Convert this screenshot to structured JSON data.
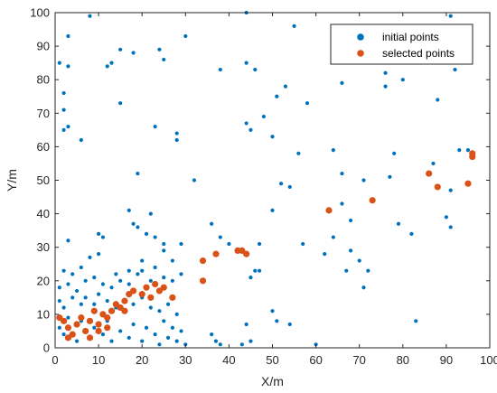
{
  "chart_data": {
    "type": "scatter",
    "xlabel": "X/m",
    "ylabel": "Y/m",
    "xlim": [
      0,
      100
    ],
    "ylim": [
      0,
      100
    ],
    "x_ticks": [
      0,
      10,
      20,
      30,
      40,
      50,
      60,
      70,
      80,
      90,
      100
    ],
    "y_ticks": [
      0,
      10,
      20,
      30,
      40,
      50,
      60,
      70,
      80,
      90,
      100
    ],
    "legend_position": "top-right",
    "box": true,
    "grid": false,
    "series": [
      {
        "name": "initial points",
        "color": "#0072BD",
        "marker_size": "small",
        "points": [
          [
            8,
            99
          ],
          [
            44,
            100
          ],
          [
            91,
            99
          ],
          [
            3,
            93
          ],
          [
            30,
            93
          ],
          [
            15,
            89
          ],
          [
            24,
            89
          ],
          [
            1,
            85
          ],
          [
            3,
            84
          ],
          [
            13,
            85
          ],
          [
            12,
            84
          ],
          [
            25,
            86
          ],
          [
            18,
            88
          ],
          [
            38,
            83
          ],
          [
            44,
            85
          ],
          [
            46,
            83
          ],
          [
            55,
            96
          ],
          [
            76,
            82
          ],
          [
            76,
            78
          ],
          [
            80,
            80
          ],
          [
            92,
            83
          ],
          [
            66,
            79
          ],
          [
            53,
            78
          ],
          [
            51,
            75
          ],
          [
            2,
            76
          ],
          [
            2,
            71
          ],
          [
            3,
            66
          ],
          [
            15,
            73
          ],
          [
            48,
            69
          ],
          [
            58,
            73
          ],
          [
            2,
            65
          ],
          [
            6,
            62
          ],
          [
            23,
            66
          ],
          [
            28,
            64
          ],
          [
            28,
            62
          ],
          [
            44,
            67
          ],
          [
            45,
            65
          ],
          [
            50,
            63
          ],
          [
            56,
            58
          ],
          [
            64,
            59
          ],
          [
            66,
            52
          ],
          [
            78,
            58
          ],
          [
            87,
            55
          ],
          [
            88,
            74
          ],
          [
            93,
            59
          ],
          [
            19,
            52
          ],
          [
            32,
            50
          ],
          [
            52,
            49
          ],
          [
            54,
            48
          ],
          [
            71,
            50
          ],
          [
            77,
            51
          ],
          [
            91,
            47
          ],
          [
            95,
            59
          ],
          [
            66,
            43
          ],
          [
            73,
            44
          ],
          [
            79,
            37
          ],
          [
            82,
            34
          ],
          [
            90,
            39
          ],
          [
            91,
            36
          ],
          [
            68,
            38
          ],
          [
            3,
            32
          ],
          [
            10,
            34
          ],
          [
            11,
            33
          ],
          [
            17,
            41
          ],
          [
            18,
            37
          ],
          [
            19,
            36
          ],
          [
            21,
            34
          ],
          [
            22,
            40
          ],
          [
            23,
            33
          ],
          [
            25,
            31
          ],
          [
            29,
            31
          ],
          [
            36,
            37
          ],
          [
            38,
            33
          ],
          [
            40,
            31
          ],
          [
            47,
            31
          ],
          [
            50,
            41
          ],
          [
            57,
            31
          ],
          [
            68,
            29
          ],
          [
            67,
            23
          ],
          [
            70,
            26
          ],
          [
            71,
            18
          ],
          [
            72,
            23
          ],
          [
            64,
            33
          ],
          [
            46,
            23
          ],
          [
            47,
            23
          ],
          [
            62,
            28
          ],
          [
            45,
            21
          ],
          [
            2,
            23
          ],
          [
            4,
            22
          ],
          [
            6,
            24
          ],
          [
            8,
            27
          ],
          [
            10,
            28
          ],
          [
            14,
            22
          ],
          [
            17,
            23
          ],
          [
            20,
            26
          ],
          [
            22,
            20
          ],
          [
            25,
            29
          ],
          [
            27,
            26
          ],
          [
            29,
            22
          ],
          [
            1,
            18
          ],
          [
            3,
            19
          ],
          [
            5,
            17
          ],
          [
            7,
            20
          ],
          [
            9,
            21
          ],
          [
            11,
            19
          ],
          [
            13,
            18
          ],
          [
            15,
            20
          ],
          [
            17,
            19
          ],
          [
            19,
            22
          ],
          [
            20,
            23
          ],
          [
            23,
            24
          ],
          [
            25,
            21
          ],
          [
            27,
            20
          ],
          [
            1,
            14
          ],
          [
            2,
            12
          ],
          [
            4,
            15
          ],
          [
            6,
            13
          ],
          [
            7,
            15
          ],
          [
            9,
            13
          ],
          [
            10,
            16
          ],
          [
            12,
            14
          ],
          [
            14,
            12
          ],
          [
            16,
            14
          ],
          [
            18,
            13
          ],
          [
            20,
            15
          ],
          [
            22,
            12
          ],
          [
            24,
            11
          ],
          [
            26,
            13
          ],
          [
            28,
            10
          ],
          [
            1,
            6
          ],
          [
            2,
            4
          ],
          [
            3,
            9
          ],
          [
            5,
            2
          ],
          [
            6,
            8
          ],
          [
            8,
            3
          ],
          [
            9,
            6
          ],
          [
            11,
            4
          ],
          [
            12,
            8
          ],
          [
            13,
            2
          ],
          [
            15,
            5
          ],
          [
            17,
            3
          ],
          [
            18,
            7
          ],
          [
            20,
            2
          ],
          [
            21,
            6
          ],
          [
            23,
            4
          ],
          [
            24,
            1
          ],
          [
            25,
            8
          ],
          [
            26,
            3
          ],
          [
            27,
            6
          ],
          [
            28,
            2
          ],
          [
            29,
            5
          ],
          [
            30,
            1
          ],
          [
            36,
            4
          ],
          [
            37,
            2
          ],
          [
            44,
            7
          ],
          [
            45,
            2
          ],
          [
            50,
            11
          ],
          [
            51,
            8
          ],
          [
            54,
            7
          ],
          [
            60,
            1
          ],
          [
            83,
            8
          ],
          [
            43,
            1
          ],
          [
            38,
            1
          ]
        ]
      },
      {
        "name": "selected points",
        "color": "#D95319",
        "marker_size": "large",
        "points": [
          [
            1,
            9
          ],
          [
            2,
            8
          ],
          [
            3,
            6
          ],
          [
            4,
            4
          ],
          [
            5,
            7
          ],
          [
            6,
            9
          ],
          [
            3,
            3
          ],
          [
            7,
            5
          ],
          [
            8,
            8
          ],
          [
            9,
            11
          ],
          [
            10,
            7
          ],
          [
            11,
            10
          ],
          [
            12,
            9
          ],
          [
            13,
            11
          ],
          [
            14,
            13
          ],
          [
            15,
            12
          ],
          [
            16,
            14
          ],
          [
            17,
            16
          ],
          [
            18,
            17
          ],
          [
            20,
            16
          ],
          [
            21,
            18
          ],
          [
            22,
            15
          ],
          [
            23,
            19
          ],
          [
            24,
            17
          ],
          [
            25,
            18
          ],
          [
            27,
            15
          ],
          [
            16,
            11
          ],
          [
            8,
            3
          ],
          [
            10,
            5
          ],
          [
            12,
            6
          ],
          [
            34,
            26
          ],
          [
            34,
            20
          ],
          [
            37,
            28
          ],
          [
            42,
            29
          ],
          [
            43,
            29
          ],
          [
            44,
            28
          ],
          [
            63,
            41
          ],
          [
            73,
            44
          ],
          [
            86,
            52
          ],
          [
            88,
            48
          ],
          [
            95,
            49
          ],
          [
            96,
            58
          ],
          [
            96,
            57
          ]
        ]
      }
    ]
  }
}
